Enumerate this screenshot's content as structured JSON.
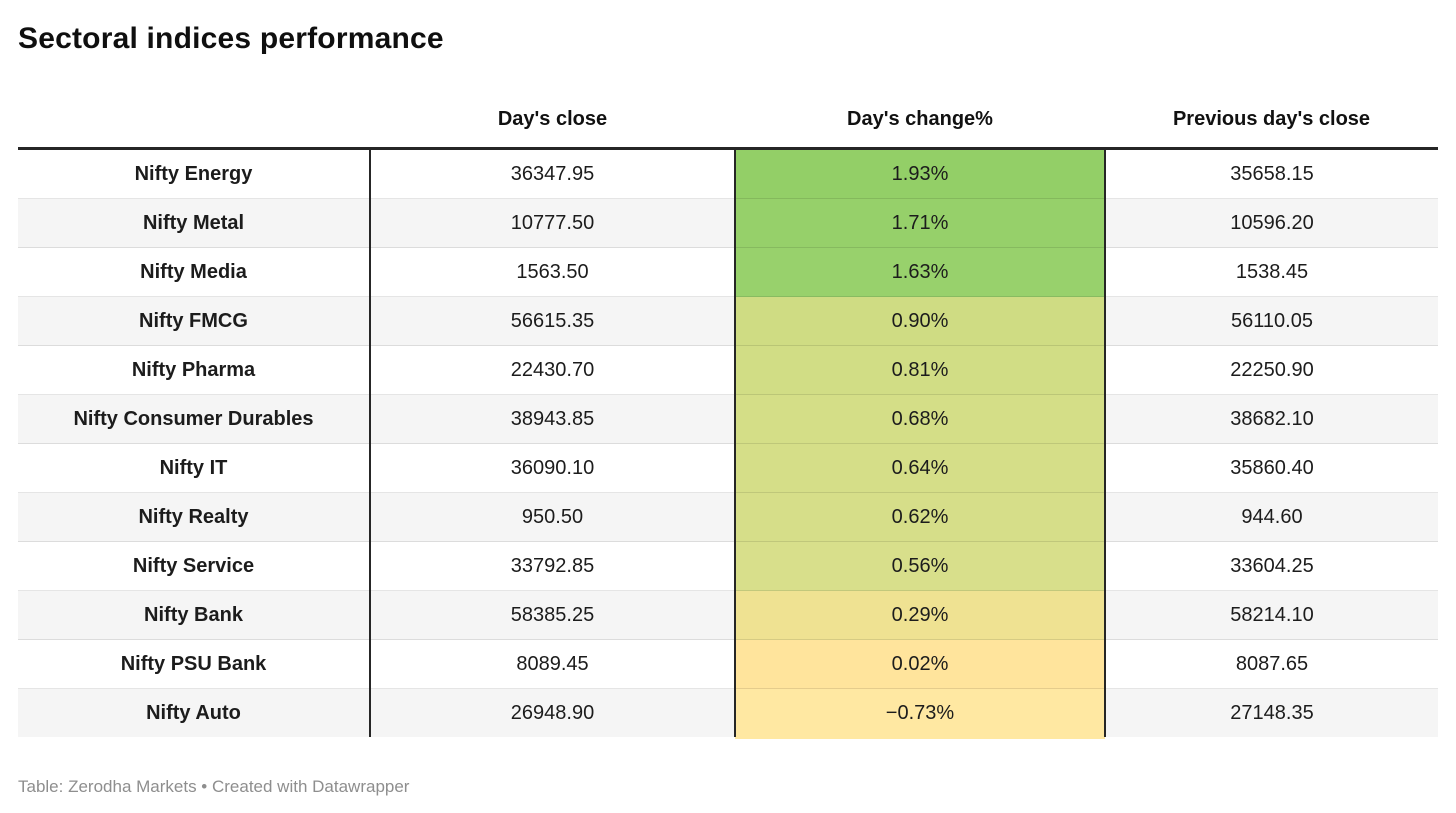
{
  "title": "Sectoral indices performance",
  "footer": {
    "credit": "Table: Zerodha Markets • Created with Datawrapper"
  },
  "colors": {
    "header_rule": "#262626",
    "column_divider": "#262626",
    "row_stripe": "#f5f5f5",
    "row_separator": "rgba(0,0,0,0.10)",
    "footer_text": "#8e8e8e"
  },
  "chart_data": {
    "type": "table",
    "title": "Sectoral indices performance",
    "columns": [
      "",
      "Day's close",
      "Day's change%",
      "Previous day's close"
    ],
    "rows": [
      {
        "label": "Nifty Energy",
        "close": "36347.95",
        "change": "1.93%",
        "prev": "35658.15",
        "change_color": "#93cf67"
      },
      {
        "label": "Nifty Metal",
        "close": "10777.50",
        "change": "1.71%",
        "prev": "10596.20",
        "change_color": "#96d06a"
      },
      {
        "label": "Nifty Media",
        "close": "1563.50",
        "change": "1.63%",
        "prev": "1538.45",
        "change_color": "#98d16c"
      },
      {
        "label": "Nifty FMCG",
        "close": "56615.35",
        "change": "0.90%",
        "prev": "56110.05",
        "change_color": "#cfdc83"
      },
      {
        "label": "Nifty Pharma",
        "close": "22430.70",
        "change": "0.81%",
        "prev": "22250.90",
        "change_color": "#d1dd85"
      },
      {
        "label": "Nifty Consumer Durables",
        "close": "38943.85",
        "change": "0.68%",
        "prev": "38682.10",
        "change_color": "#d4de87"
      },
      {
        "label": "Nifty IT",
        "close": "36090.10",
        "change": "0.64%",
        "prev": "35860.40",
        "change_color": "#d5de88"
      },
      {
        "label": "Nifty Realty",
        "close": "950.50",
        "change": "0.62%",
        "prev": "944.60",
        "change_color": "#d6de89"
      },
      {
        "label": "Nifty Service",
        "close": "33792.85",
        "change": "0.56%",
        "prev": "33604.25",
        "change_color": "#d8df8b"
      },
      {
        "label": "Nifty Bank",
        "close": "58385.25",
        "change": "0.29%",
        "prev": "58214.10",
        "change_color": "#efe292"
      },
      {
        "label": "Nifty PSU Bank",
        "close": "8089.45",
        "change": "0.02%",
        "prev": "8087.65",
        "change_color": "#ffe49c"
      },
      {
        "label": "Nifty Auto",
        "close": "26948.90",
        "change": "−0.73%",
        "prev": "27148.35",
        "change_color": "#ffe8a2"
      }
    ]
  }
}
